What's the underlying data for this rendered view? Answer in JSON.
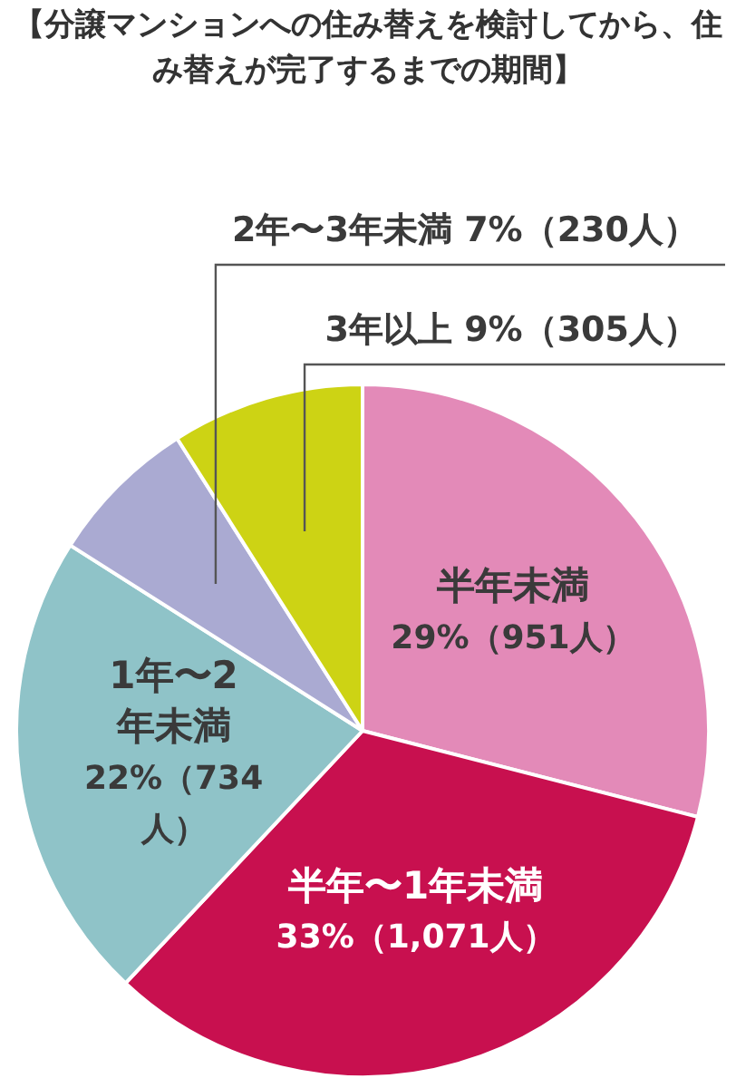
{
  "chart_data": {
    "type": "pie",
    "title": "【分譲マンションへの住み替えを検討してから、住み替えが完了するまでの期間】",
    "categories": [
      "半年未満",
      "半年〜1年未満",
      "1年〜2年未満",
      "2年〜3年未満",
      "3年以上"
    ],
    "values": [
      29,
      33,
      22,
      7,
      9
    ],
    "value_labels": [
      "29%（951人）",
      "33%（1,071人）",
      "22%（734人）",
      "7%（230人）",
      "9%（305人）"
    ],
    "colors": [
      "#e38ab8",
      "#c8104f",
      "#8fc3c8",
      "#aaaad2",
      "#cdd314"
    ],
    "legend": false
  }
}
